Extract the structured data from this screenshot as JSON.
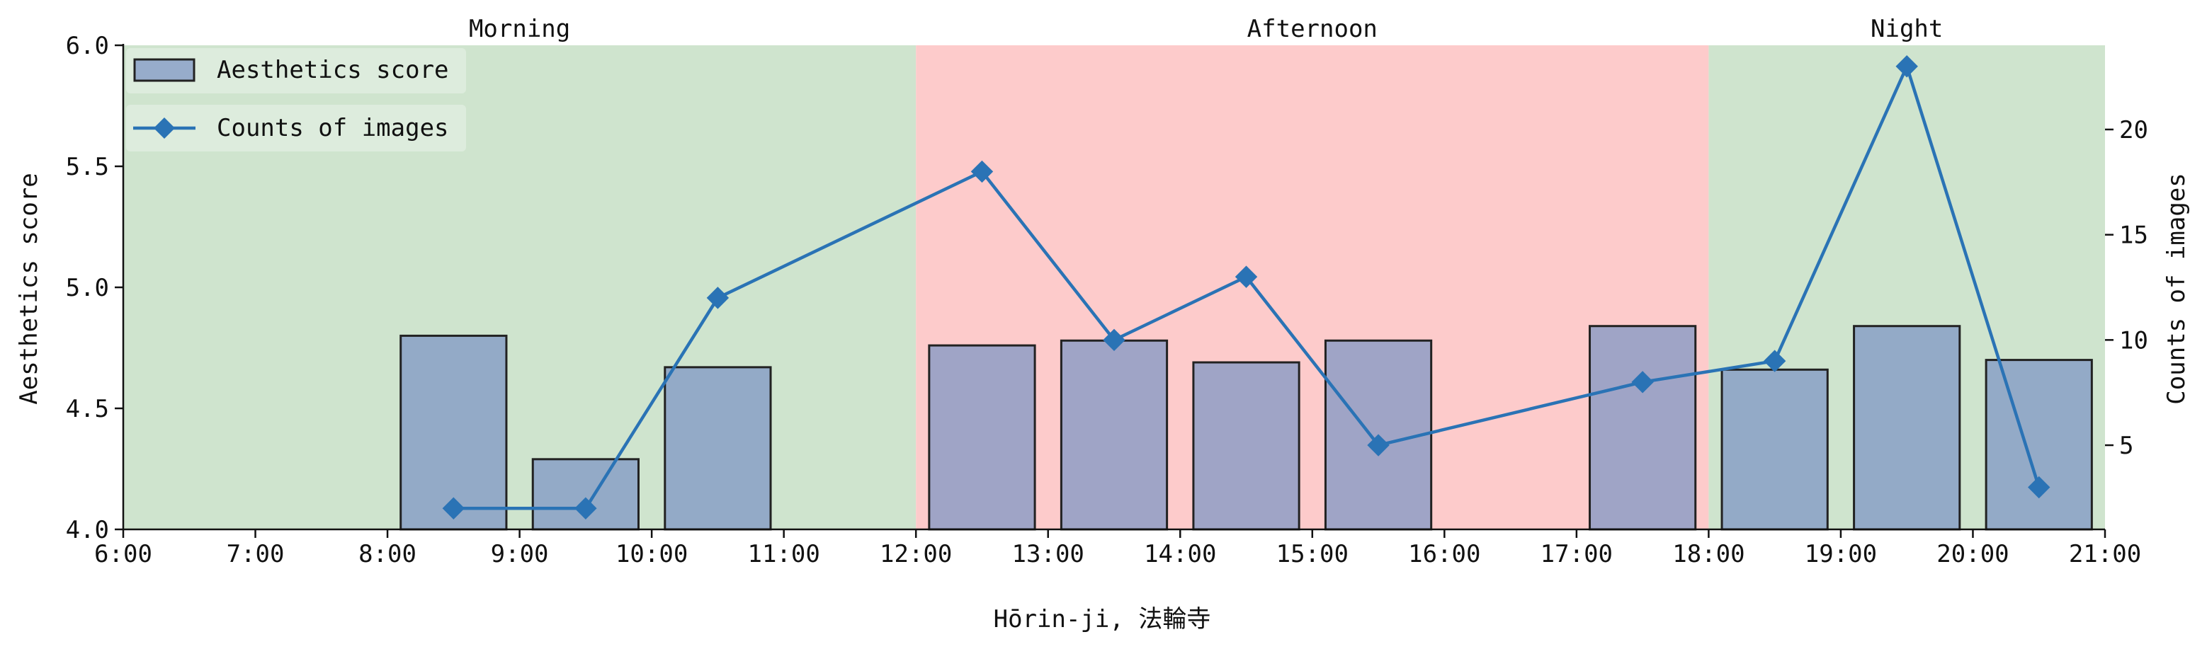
{
  "chart_data": {
    "type": "bar",
    "xlabel": "Hōrin-ji, 法輪寺",
    "ylabel_left": "Aesthetics score",
    "ylabel_right": "Counts of images",
    "x_tick_labels": [
      "6:00",
      "7:00",
      "8:00",
      "9:00",
      "10:00",
      "11:00",
      "12:00",
      "13:00",
      "14:00",
      "15:00",
      "16:00",
      "17:00",
      "18:00",
      "19:00",
      "20:00",
      "21:00"
    ],
    "x_range_hours": [
      6,
      21
    ],
    "ylim_left": [
      4.0,
      6.0
    ],
    "y_ticks_left": [
      "4.0",
      "4.5",
      "5.0",
      "5.5",
      "6.0"
    ],
    "ylim_right": [
      1,
      24
    ],
    "y_ticks_right": [
      "5",
      "10",
      "15",
      "20"
    ],
    "periods": [
      {
        "label": "Morning",
        "start": 6,
        "end": 12,
        "color": "#cfe4ce"
      },
      {
        "label": "Afternoon",
        "start": 12,
        "end": 18,
        "color": "#fdcbcb"
      },
      {
        "label": "Night",
        "start": 18,
        "end": 21,
        "color": "#cfe4ce"
      }
    ],
    "bar_series": {
      "name": "Aesthetics score",
      "color": "#7f97c4",
      "edge_color": "#222222",
      "x": [
        8.5,
        9.5,
        10.5,
        12.5,
        13.5,
        14.5,
        15.5,
        17.5,
        18.5,
        19.5,
        20.5
      ],
      "values": [
        4.8,
        4.29,
        4.67,
        4.76,
        4.78,
        4.69,
        4.78,
        4.84,
        4.66,
        4.84,
        4.7
      ]
    },
    "line_series": {
      "name": "Counts of images",
      "color": "#2a73b5",
      "marker": "diamond",
      "x": [
        8.5,
        9.5,
        10.5,
        12.5,
        13.5,
        14.5,
        15.5,
        17.5,
        18.5,
        19.5,
        20.5
      ],
      "values": [
        2,
        2,
        12,
        18,
        10,
        13,
        5,
        8,
        9,
        23,
        3
      ]
    },
    "legend_position": "top-left",
    "grid": false
  }
}
